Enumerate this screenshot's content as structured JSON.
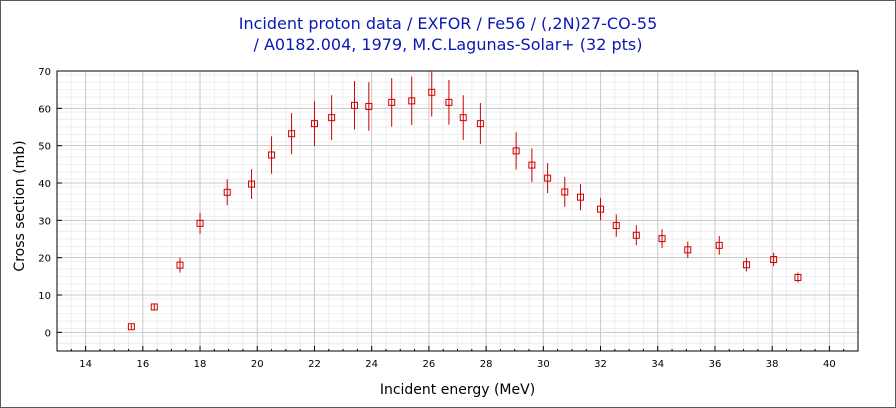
{
  "title_line1": "Incident proton data / EXFOR / Fe56 / (,2N)27-CO-55",
  "title_line2": "/ A0182.004, 1979, M.C.Lagunas-Solar+ (32 pts)",
  "chart_data": {
    "type": "scatter",
    "title": "Incident proton data / EXFOR / Fe56 / (,2N)27-CO-55 / A0182.004, 1979, M.C.Lagunas-Solar+ (32 pts)",
    "xlabel": "Incident energy (MeV)",
    "ylabel": "Cross section (mb)",
    "xlim": [
      13,
      41
    ],
    "ylim": [
      -5,
      70
    ],
    "x_ticks": [
      14,
      16,
      18,
      20,
      22,
      24,
      26,
      28,
      30,
      32,
      34,
      36,
      38,
      40
    ],
    "y_ticks": [
      0,
      10,
      20,
      30,
      40,
      50,
      60,
      70
    ],
    "grid": true,
    "marker": "open-square",
    "color": "#cc0000",
    "series": [
      {
        "x": [
          15.6,
          16.4,
          17.3,
          18.0,
          18.95,
          19.8,
          20.5,
          21.2,
          22.0,
          22.6,
          23.4,
          23.9,
          24.7,
          25.4,
          26.1,
          26.7,
          27.2,
          27.8,
          29.05,
          29.6,
          30.15,
          30.75,
          31.3,
          32.0,
          32.55,
          33.25,
          34.15,
          35.05,
          36.15,
          37.1,
          38.05,
          38.9
        ],
        "y": [
          1.5,
          6.8,
          18.0,
          29.2,
          37.5,
          39.7,
          47.5,
          53.2,
          55.9,
          57.5,
          60.8,
          60.5,
          61.6,
          62.0,
          64.3,
          61.6,
          57.5,
          55.9,
          48.6,
          44.8,
          41.3,
          37.6,
          36.2,
          33.0,
          28.6,
          26.0,
          25.1,
          22.1,
          23.3,
          18.1,
          19.5,
          14.7
        ],
        "yerr": [
          0.6,
          0.9,
          2.0,
          2.8,
          3.5,
          4.0,
          5.0,
          5.5,
          6.0,
          6.0,
          6.5,
          6.5,
          6.5,
          6.5,
          6.5,
          6.0,
          6.0,
          5.5,
          5.0,
          4.5,
          4.0,
          4.0,
          3.5,
          3.0,
          3.0,
          2.7,
          2.5,
          2.2,
          2.5,
          1.8,
          1.8,
          1.3
        ]
      }
    ]
  }
}
